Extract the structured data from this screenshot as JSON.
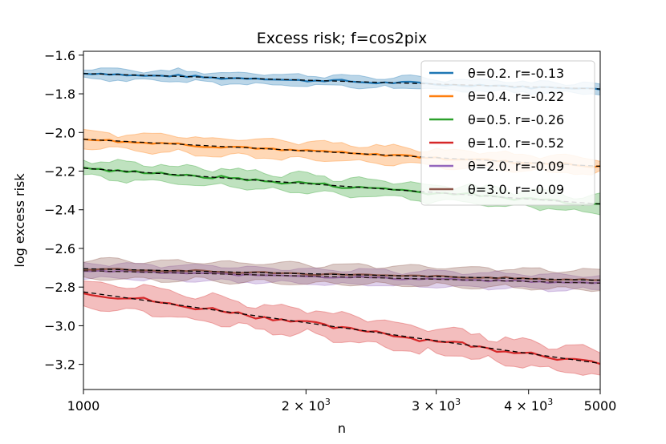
{
  "chart_data": {
    "type": "line",
    "title": "Excess risk;  f=cos2pix",
    "xlabel": "n",
    "ylabel": "log excess risk",
    "xscale": "log",
    "xlim": [
      1000,
      5000
    ],
    "ylim": [
      -3.33,
      -1.58
    ],
    "yticks": [
      -1.6,
      -1.8,
      -2.0,
      -2.2,
      -2.4,
      -2.6,
      -2.8,
      -3.0,
      -3.2
    ],
    "ytick_labels": [
      "−1.6",
      "−1.8",
      "−2.0",
      "−2.2",
      "−2.4",
      "−2.6",
      "−2.8",
      "−3.0",
      "−3.2"
    ],
    "xticks": [
      1000,
      2000,
      3000,
      4000,
      5000
    ],
    "xtick_labels": [
      {
        "text": "1000",
        "base": "",
        "exp": ""
      },
      {
        "text": "2 × 10",
        "base": "",
        "exp": "3"
      },
      {
        "text": "3 × 10",
        "base": "",
        "exp": "3"
      },
      {
        "text": "4 × 10",
        "base": "",
        "exp": "3"
      },
      {
        "text": "5000",
        "base": "",
        "exp": ""
      }
    ],
    "legend_position": "top-right",
    "series": [
      {
        "name": "θ=0.2. r=-0.13",
        "color": "#1f77b4",
        "start": -1.695,
        "end": -1.775,
        "band_width": 0.025,
        "noise": 0.006,
        "wiggle": 0.008
      },
      {
        "name": "θ=0.4. r=-0.22",
        "color": "#ff7f0e",
        "start": -2.035,
        "end": -2.175,
        "band_width": 0.04,
        "noise": 0.006,
        "wiggle": 0.01
      },
      {
        "name": "θ=0.5. r=-0.26",
        "color": "#2ca02c",
        "start": -2.185,
        "end": -2.37,
        "band_width": 0.04,
        "noise": 0.008,
        "wiggle": 0.012
      },
      {
        "name": "θ=1.0. r=-0.52",
        "color": "#d62728",
        "start": -2.825,
        "end": -3.195,
        "band_width": 0.06,
        "noise": 0.01,
        "wiggle": 0.015
      },
      {
        "name": "θ=2.0. r=-0.09",
        "color": "#9467bd",
        "start": -2.715,
        "end": -2.78,
        "band_width": 0.035,
        "noise": 0.004,
        "wiggle": 0.005
      },
      {
        "name": "θ=3.0. r=-0.09",
        "color": "#8c564b",
        "start": -2.705,
        "end": -2.765,
        "band_width": 0.045,
        "noise": 0.004,
        "wiggle": 0.005
      }
    ]
  }
}
